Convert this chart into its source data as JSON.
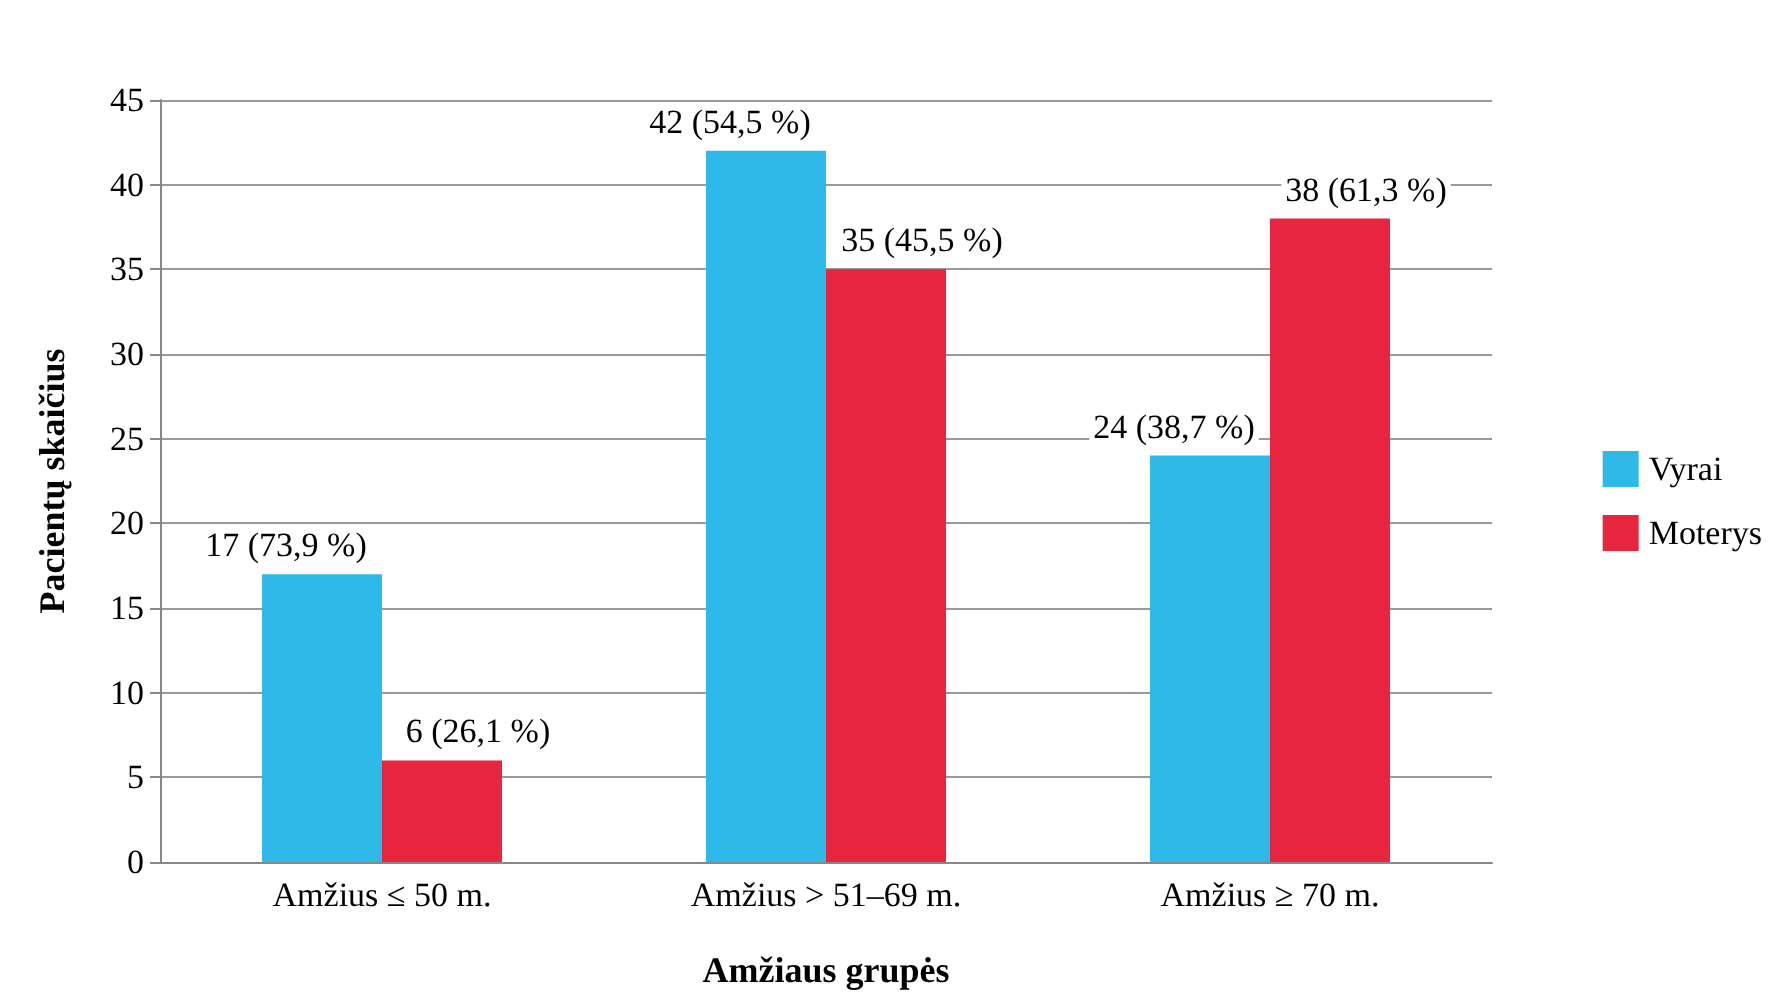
{
  "chart_data": {
    "type": "bar",
    "xlabel": "Amžiaus grupės",
    "ylabel": "Pacientų skaičius",
    "categories": [
      "Amžius ≤ 50 m.",
      "Amžius > 51–69 m.",
      "Amžius ≥ 70 m."
    ],
    "series": [
      {
        "name": "Vyrai",
        "color": "#2fb9e8",
        "values": [
          17,
          42,
          24
        ],
        "value_labels": [
          "17 (73,9 %)",
          "42 (54,5 %)",
          "24 (38,7 %)"
        ]
      },
      {
        "name": "Moterys",
        "color": "#e8253f",
        "values": [
          6,
          35,
          38
        ],
        "value_labels": [
          "6 (26,1 %)",
          "35 (45,5 %)",
          "38 (61,3 %)"
        ]
      }
    ],
    "ylim": [
      0,
      45
    ],
    "yticks": [
      0,
      5,
      10,
      15,
      20,
      25,
      30,
      35,
      40,
      45
    ],
    "grid": "y",
    "legend": "right"
  }
}
